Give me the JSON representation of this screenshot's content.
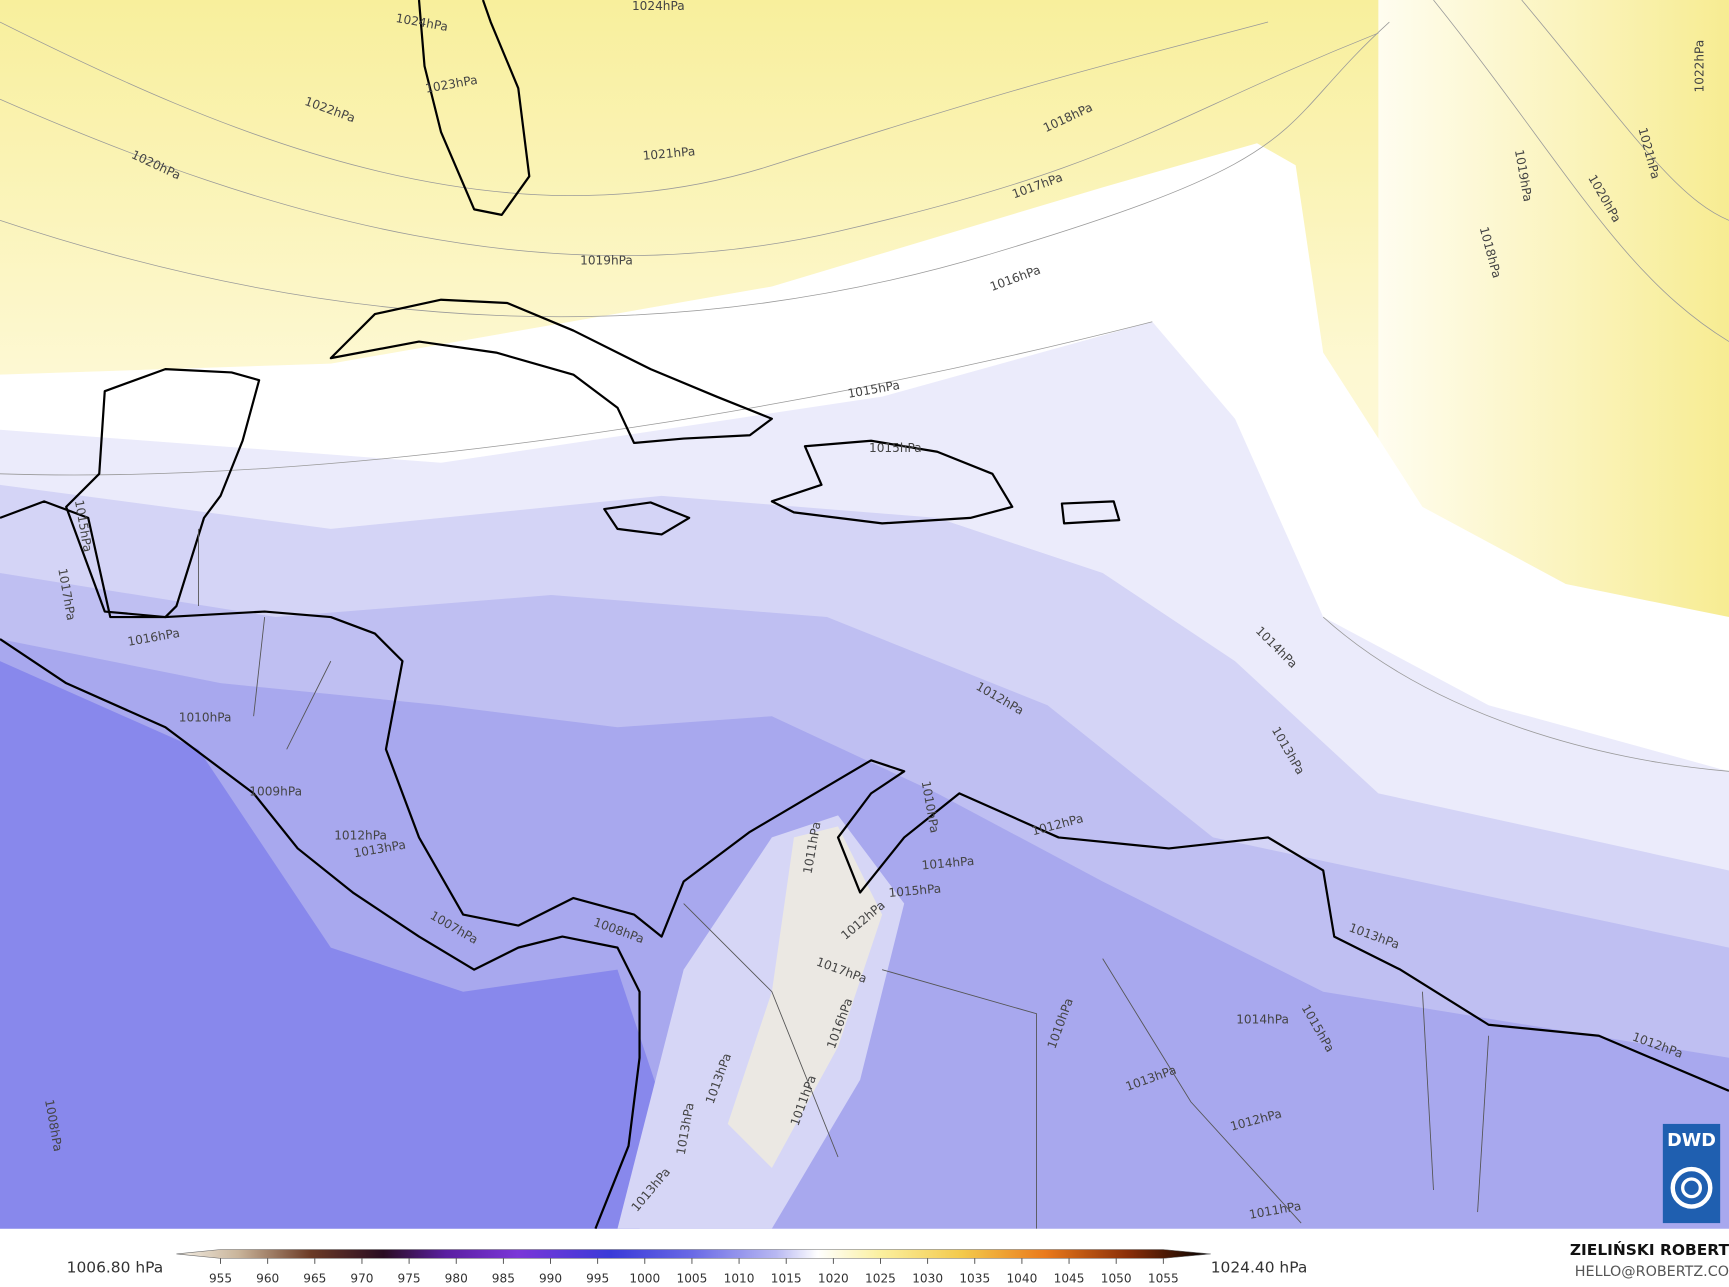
{
  "map": {
    "contour_labels": [
      "1024hPa",
      "1024hPa",
      "1023hPa",
      "1022hPa",
      "1021hPa",
      "1020hPa",
      "1019hPa",
      "1018hPa",
      "1017hPa",
      "1016hPa",
      "1015hPa",
      "1015hPa",
      "1015hPa",
      "1017hPa",
      "1016hPa",
      "1010hPa",
      "1009hPa",
      "1012hPa",
      "1013hPa",
      "1007hPa",
      "1008hPa",
      "1022hPa",
      "1021hPa",
      "1020hPa",
      "1019hPa",
      "1018hPa",
      "1014hPa",
      "1012hPa",
      "1013hPa",
      "1010hPa",
      "1012hPa",
      "1014hPa",
      "1015hPa",
      "1012hPa",
      "1011hPa",
      "1017hPa",
      "1016hPa",
      "1013hPa",
      "1014hPa",
      "1015hPa",
      "1012hPa",
      "1010hPa",
      "1013hPa",
      "1012hPa",
      "1011hPa",
      "1011hPa",
      "1013hPa",
      "1013hPa",
      "1013hPa",
      "1008hPa"
    ],
    "colorbar": {
      "min_label": "1006.80 hPa",
      "max_label": "1024.40 hPa",
      "ticks": [
        955,
        960,
        965,
        970,
        975,
        980,
        985,
        990,
        995,
        1000,
        1005,
        1010,
        1015,
        1020,
        1025,
        1030,
        1035,
        1040,
        1045,
        1050,
        1055
      ]
    },
    "credit": {
      "name": "ZIELIŃSKI ROBERT",
      "email": "HELLO@ROBERTZ.CO"
    },
    "logo": "DWD"
  }
}
